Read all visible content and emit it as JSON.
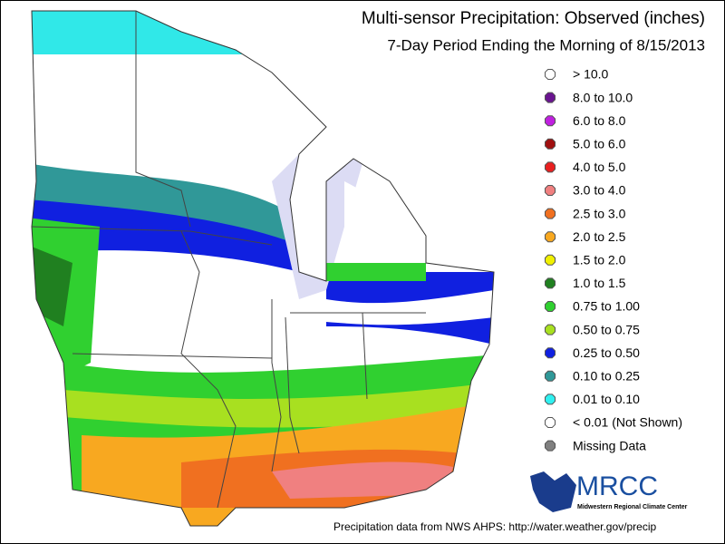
{
  "header": {
    "title": "Multi-sensor Precipitation:  Observed (inches)",
    "subtitle": "7-Day Period Ending the Morning of 8/15/2013"
  },
  "legend": {
    "items": [
      {
        "label": "> 10.0",
        "color": "#ffffff"
      },
      {
        "label": "8.0 to 10.0",
        "color": "#6a1490"
      },
      {
        "label": "6.0 to 8.0",
        "color": "#c020e0"
      },
      {
        "label": "5.0 to 6.0",
        "color": "#a01010"
      },
      {
        "label": "4.0 to 5.0",
        "color": "#e82020"
      },
      {
        "label": "3.0 to 4.0",
        "color": "#f08080"
      },
      {
        "label": "2.5 to 3.0",
        "color": "#f07020"
      },
      {
        "label": "2.0 to 2.5",
        "color": "#f8a820"
      },
      {
        "label": "1.5 to 2.0",
        "color": "#f0f000"
      },
      {
        "label": "1.0 to 1.5",
        "color": "#208020"
      },
      {
        "label": "0.75 to 1.00",
        "color": "#30d030"
      },
      {
        "label": "0.50 to 0.75",
        "color": "#a8e020"
      },
      {
        "label": "0.25 to 0.50",
        "color": "#1020e0"
      },
      {
        "label": "0.10 to 0.25",
        "color": "#309898"
      },
      {
        "label": "0.01 to 0.10",
        "color": "#30f0f0"
      },
      {
        "label": "< 0.01 (Not Shown)",
        "color": "#ffffff"
      },
      {
        "label": "Missing Data",
        "color": "#808080"
      }
    ]
  },
  "logo": {
    "name": "MRCC",
    "subtitle": "Midwestern Regional Climate Center"
  },
  "footer": "Precipitation data from NWS AHPS: http://water.weather.gov/precip"
}
